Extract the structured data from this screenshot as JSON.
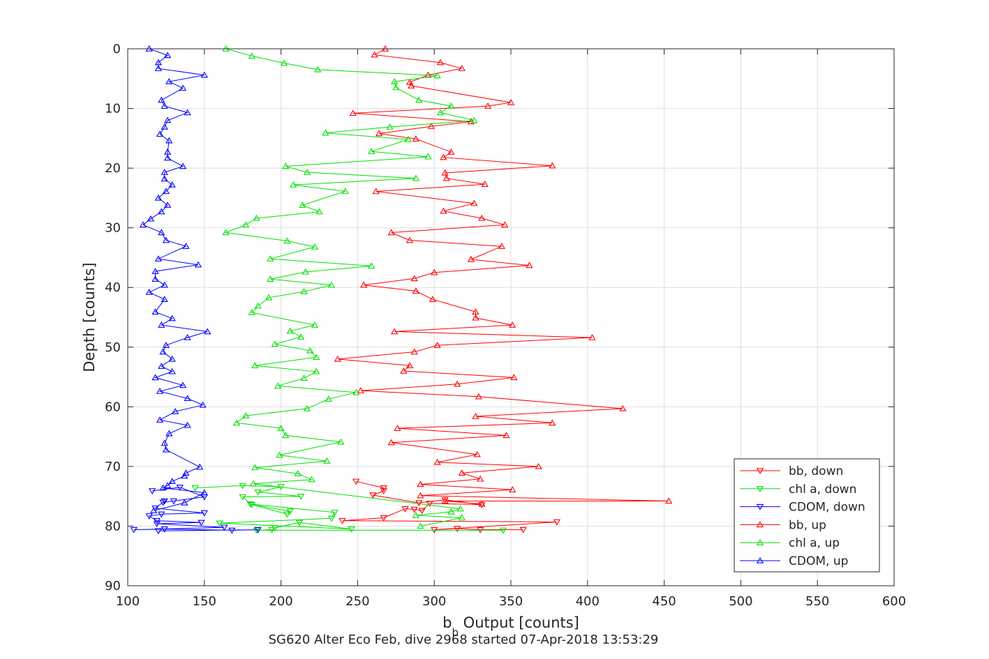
{
  "chart_data": {
    "type": "line",
    "xlabel_main": "b",
    "xlabel_sub": "b",
    "xlabel_rest": " Output [counts]",
    "ylabel": "Depth [counts]",
    "footer": "SG620 Alter Eco Feb, dive 2968 started 07-Apr-2018 13:53:29",
    "xlim": [
      100,
      600
    ],
    "ylim": [
      0,
      90
    ],
    "y_reversed": true,
    "grid": true,
    "legend_placement": "bottom-right",
    "xticks": [
      "100",
      "150",
      "200",
      "250",
      "300",
      "350",
      "400",
      "450",
      "500",
      "550",
      "600"
    ],
    "yticks": [
      "0",
      "10",
      "20",
      "30",
      "40",
      "50",
      "60",
      "70",
      "80",
      "90"
    ],
    "colors": {
      "red": "#ff0000",
      "green": "#00e000",
      "blue": "#0000ff"
    },
    "series": [
      {
        "name": "bb, down",
        "color": "#ff0000",
        "marker": "triangle-down",
        "x": [
          249,
          267,
          267,
          260,
          290,
          307,
          331,
          297,
          292,
          287,
          281,
          267,
          240,
          380,
          300,
          315,
          330,
          358
        ],
        "y": [
          72.5,
          73.6,
          74.1,
          74.8,
          76.1,
          75.6,
          76.4,
          76.2,
          77.4,
          77.2,
          77.1,
          78.6,
          79.1,
          79.3,
          80.6,
          80.4,
          80.6,
          80.6
        ]
      },
      {
        "name": "chl a, down",
        "color": "#00e000",
        "marker": "triangle-down",
        "x": [
          144,
          175,
          200,
          185,
          213,
          175,
          181,
          206,
          204,
          180,
          235,
          233,
          160,
          246,
          212,
          196,
          194,
          184,
          345
        ],
        "y": [
          73.6,
          73.2,
          73.4,
          74.3,
          75.0,
          75.1,
          76.4,
          77.5,
          78.0,
          76.3,
          77.7,
          78.7,
          79.5,
          80.5,
          79.4,
          80.3,
          80.6,
          80.7,
          80.7
        ]
      },
      {
        "name": "CDOM, down",
        "color": "#0000ff",
        "marker": "triangle-down",
        "x": [
          116,
          134,
          150,
          130,
          123,
          124,
          118,
          150,
          122,
          114,
          119,
          148,
          119,
          163,
          104,
          124,
          168,
          185,
          120
        ],
        "y": [
          74.1,
          73.5,
          75.1,
          75.8,
          76.0,
          75.8,
          77.0,
          77.8,
          78.0,
          78.3,
          79.1,
          79.4,
          79.6,
          80.2,
          80.6,
          80.5,
          80.7,
          80.6,
          80.8
        ]
      },
      {
        "name": "bb, up",
        "color": "#ff0000",
        "marker": "triangle-up",
        "x": [
          268,
          261,
          304,
          318,
          296,
          284,
          285,
          350,
          335,
          247,
          324,
          298,
          264,
          288,
          311,
          306,
          377,
          307,
          308,
          333,
          262,
          326,
          306,
          331,
          346,
          272,
          284,
          344,
          324,
          362,
          300,
          287,
          254,
          288,
          299,
          327,
          327,
          351,
          274,
          403,
          302,
          287,
          237,
          284,
          280,
          352,
          315,
          252,
          329,
          423,
          327,
          377,
          276,
          347,
          272,
          328,
          302,
          368,
          318,
          330,
          291,
          351,
          291,
          453,
          307,
          331
        ],
        "y": [
          0.0,
          1.0,
          2.3,
          3.3,
          4.4,
          5.6,
          6.2,
          9.0,
          9.6,
          10.8,
          12.2,
          13.0,
          14.2,
          15.1,
          17.3,
          18.2,
          19.6,
          20.8,
          21.7,
          22.7,
          23.9,
          25.9,
          27.2,
          28.4,
          29.5,
          30.8,
          32.1,
          33.1,
          35.3,
          36.3,
          37.5,
          38.5,
          39.6,
          40.6,
          42.0,
          44.1,
          45.1,
          46.3,
          47.4,
          48.4,
          49.7,
          50.8,
          52.0,
          53.1,
          54.0,
          55.1,
          56.2,
          57.3,
          58.3,
          60.3,
          61.6,
          62.7,
          63.6,
          64.8,
          66.0,
          68.0,
          69.3,
          70.0,
          71.1,
          72.1,
          73.0,
          73.9,
          74.9,
          75.8,
          75.8,
          76.3
        ]
      },
      {
        "name": "chl a, up",
        "color": "#00e000",
        "marker": "triangle-up",
        "x": [
          164,
          181,
          202,
          224,
          302,
          274,
          275,
          290,
          311,
          304,
          326,
          271,
          229,
          283,
          259,
          296,
          203,
          217,
          288,
          208,
          242,
          214,
          225,
          184,
          177,
          164,
          204,
          222,
          193,
          259,
          216,
          193,
          233,
          215,
          192,
          185,
          181,
          222,
          206,
          213,
          196,
          219,
          223,
          183,
          223,
          215,
          198,
          249,
          231,
          217,
          177,
          171,
          200,
          203,
          239,
          199,
          230,
          183,
          211,
          220,
          182,
          317,
          311,
          288,
          318,
          291
        ],
        "y": [
          0.0,
          1.2,
          2.4,
          3.5,
          4.5,
          5.5,
          6.5,
          8.6,
          9.6,
          10.7,
          12.0,
          13.1,
          14.1,
          15.2,
          17.2,
          18.1,
          19.7,
          20.7,
          21.7,
          22.8,
          23.9,
          26.2,
          27.3,
          28.4,
          29.5,
          30.8,
          32.2,
          33.2,
          35.2,
          36.4,
          37.4,
          38.6,
          39.6,
          40.7,
          41.7,
          43.1,
          44.2,
          46.3,
          47.3,
          48.3,
          49.5,
          50.6,
          51.7,
          53.1,
          54.1,
          55.2,
          56.5,
          57.6,
          58.7,
          60.3,
          61.5,
          62.7,
          63.6,
          64.8,
          65.9,
          68.1,
          69.1,
          70.2,
          71.2,
          72.2,
          72.9,
          77.1,
          77.6,
          78.2,
          78.6,
          80.0
        ]
      },
      {
        "name": "CDOM, up",
        "color": "#0000ff",
        "marker": "triangle-up",
        "x": [
          114,
          126,
          120,
          120,
          150,
          127,
          136,
          122,
          124,
          139,
          126,
          124,
          121,
          127,
          126,
          126,
          136,
          124,
          124,
          129,
          125,
          120,
          126,
          122,
          115,
          110,
          122,
          125,
          138,
          120,
          146,
          118,
          118,
          124,
          114,
          124,
          118,
          129,
          122,
          152,
          139,
          125,
          123,
          129,
          122,
          129,
          118,
          136,
          121,
          139,
          149,
          131,
          121,
          139,
          127,
          124,
          125,
          147,
          138,
          137,
          129,
          126,
          123,
          150,
          137,
          117
        ],
        "y": [
          0.0,
          1.1,
          2.3,
          3.3,
          4.4,
          5.5,
          6.6,
          8.6,
          9.6,
          10.7,
          12.0,
          13.1,
          14.3,
          15.4,
          17.3,
          18.3,
          19.7,
          20.7,
          21.8,
          22.8,
          23.9,
          25.0,
          26.2,
          27.3,
          28.5,
          29.5,
          30.8,
          32.1,
          33.1,
          35.2,
          36.2,
          37.3,
          38.6,
          39.6,
          40.8,
          42.0,
          44.1,
          45.2,
          46.3,
          47.4,
          48.4,
          49.7,
          50.8,
          52.0,
          53.2,
          54.1,
          55.1,
          56.4,
          57.4,
          58.6,
          59.7,
          60.8,
          62.2,
          63.1,
          64.5,
          66.1,
          67.2,
          70.1,
          71.1,
          71.6,
          72.5,
          73.2,
          73.6,
          74.4,
          76.1,
          77.4
        ]
      }
    ]
  }
}
